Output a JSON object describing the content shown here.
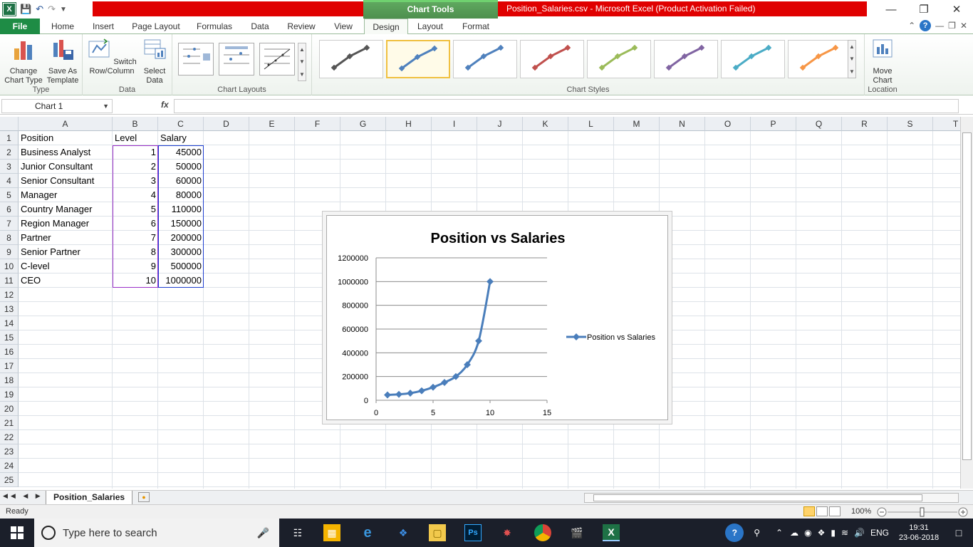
{
  "window": {
    "title": "Position_Salaries.csv  -  Microsoft Excel (Product Activation Failed)",
    "context_tab": "Chart Tools"
  },
  "tabs": [
    "File",
    "Home",
    "Insert",
    "Page Layout",
    "Formulas",
    "Data",
    "Review",
    "View",
    "Design",
    "Layout",
    "Format"
  ],
  "active_tab": "Design",
  "ribbon": {
    "type_group": {
      "label": "Type",
      "change": "Change\nChart Type",
      "save": "Save As\nTemplate"
    },
    "data_group": {
      "label": "Data",
      "switch": "Switch\nRow/Column",
      "select": "Select\nData"
    },
    "layouts_group": {
      "label": "Chart Layouts"
    },
    "styles_group": {
      "label": "Chart Styles",
      "colors": [
        "#555555",
        "#4f81bd",
        "#4f81bd",
        "#c0504d",
        "#9bbb59",
        "#8064a2",
        "#4bacc6",
        "#f79646"
      ],
      "selected_index": 1
    },
    "location_group": {
      "label": "Location",
      "move": "Move\nChart"
    }
  },
  "formula_bar": {
    "name_box": "Chart 1",
    "fx": "fx",
    "formula": ""
  },
  "columns": [
    "A",
    "B",
    "C",
    "D",
    "E",
    "F",
    "G",
    "H",
    "I",
    "J",
    "K",
    "L",
    "M",
    "N",
    "O",
    "P",
    "Q",
    "R",
    "S",
    "T"
  ],
  "rows": [
    "1",
    "2",
    "3",
    "4",
    "5",
    "6",
    "7",
    "8",
    "9",
    "10",
    "11",
    "12",
    "13",
    "14",
    "15",
    "16",
    "17",
    "18",
    "19",
    "20",
    "21",
    "22",
    "23",
    "24",
    "25"
  ],
  "sheet": {
    "headers": [
      "Position",
      "Level",
      "Salary"
    ],
    "data": [
      [
        "Business Analyst",
        "1",
        "45000"
      ],
      [
        "Junior Consultant",
        "2",
        "50000"
      ],
      [
        "Senior Consultant",
        "3",
        "60000"
      ],
      [
        "Manager",
        "4",
        "80000"
      ],
      [
        "Country Manager",
        "5",
        "110000"
      ],
      [
        "Region Manager",
        "6",
        "150000"
      ],
      [
        "Partner",
        "7",
        "200000"
      ],
      [
        "Senior Partner",
        "8",
        "300000"
      ],
      [
        "C-level",
        "9",
        "500000"
      ],
      [
        "CEO",
        "10",
        "1000000"
      ]
    ]
  },
  "chart_data": {
    "type": "scatter",
    "title": "Position vs Salaries",
    "series": [
      {
        "name": "Position vs Salaries",
        "color": "#4a7ebb",
        "x": [
          1,
          2,
          3,
          4,
          5,
          6,
          7,
          8,
          9,
          10
        ],
        "y": [
          45000,
          50000,
          60000,
          80000,
          110000,
          150000,
          200000,
          300000,
          500000,
          1000000
        ]
      }
    ],
    "xlim": [
      0,
      15
    ],
    "ylim": [
      0,
      1200000
    ],
    "xticks": [
      "0",
      "5",
      "10",
      "15"
    ],
    "yticks": [
      "0",
      "200000",
      "400000",
      "600000",
      "800000",
      "1000000",
      "1200000"
    ],
    "grid": true,
    "legend": "right",
    "smooth_lines": true
  },
  "sheet_tab": "Position_Salaries",
  "status": {
    "ready": "Ready",
    "zoom": "100%"
  },
  "taskbar": {
    "search_placeholder": "Type here to search",
    "lang": "ENG",
    "time": "19:31",
    "date": "23-06-2018"
  }
}
